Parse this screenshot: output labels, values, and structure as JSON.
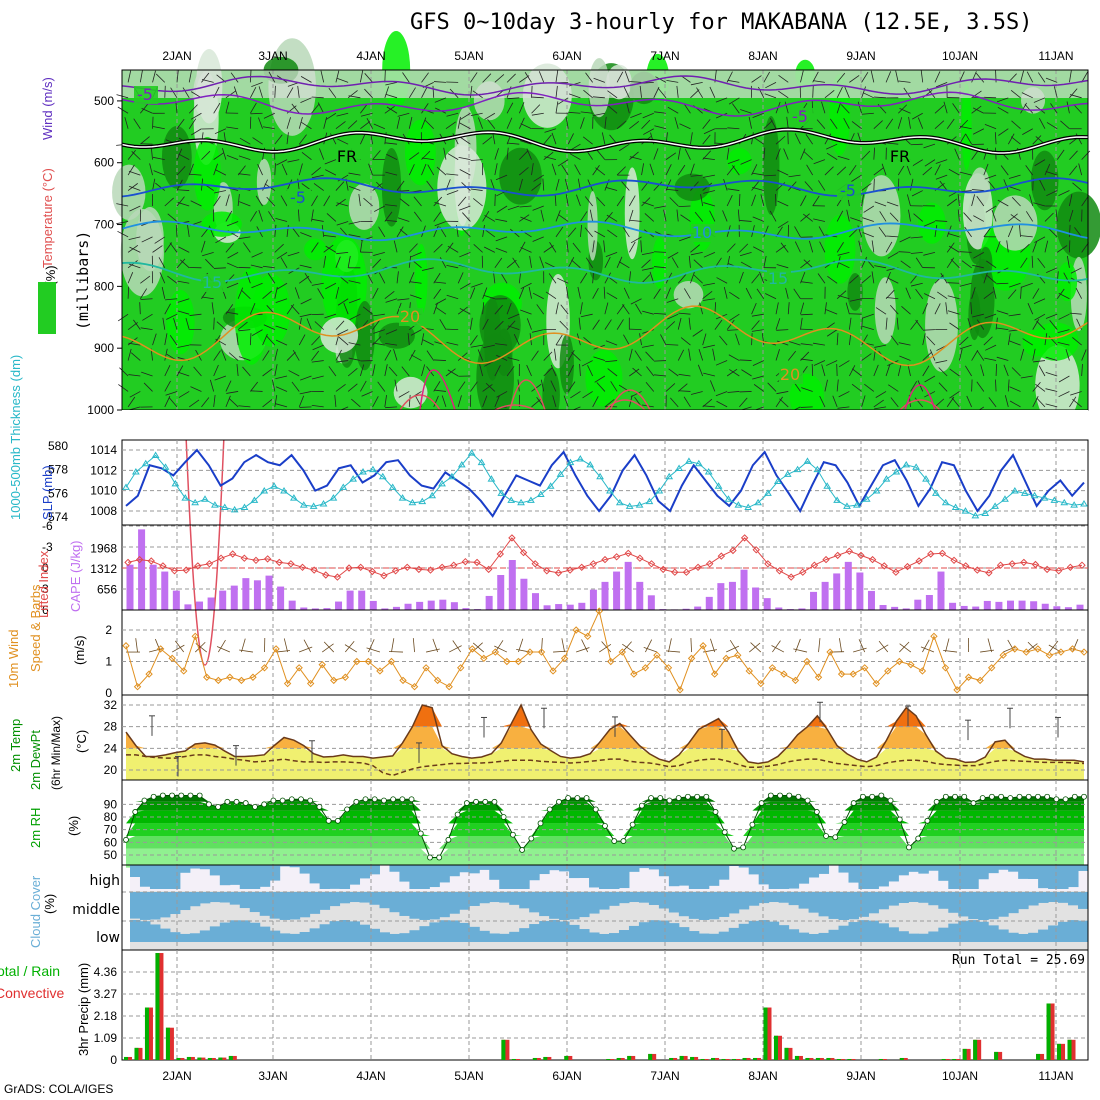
{
  "title": "GFS 0~10day 3-hourly for MAKABANA (12.5E, 3.5S)",
  "footer": "GrADS: COLA/IGES",
  "colors": {
    "rh_dark": "#118a11",
    "rh_mid": "#22cc22",
    "rh_light": "#00ee00",
    "rh_pale": "#b8d8b8",
    "temp_line": "#1a3ec8",
    "thickness": "#28b8c8",
    "lifted": "#e04848",
    "cape": "#c070f0",
    "wind10": "#e09020",
    "temp_fill_hi": "#f07010",
    "temp_fill_mid": "#f8b040",
    "temp_fill_lo": "#f0f070",
    "rh2m": "#00c000",
    "cloud": "#6aaed6",
    "cloud_bg": "#e2e2e2",
    "precip_total": "#00b000",
    "precip_conv": "#e03030"
  },
  "chart_data": [
    {
      "type": "heatmap",
      "panel": "upper-air",
      "ylabels_left": [
        "RH (%)",
        "Temperature (°C)",
        "Wind (m/s)"
      ],
      "ylabel_right": "(millibars)",
      "y_ticks": [
        "500",
        "600",
        "700",
        "800",
        "900",
        "1000"
      ],
      "date_ticks": [
        "2JAN",
        "3JAN",
        "4JAN",
        "5JAN",
        "6JAN",
        "7JAN",
        "8JAN",
        "9JAN",
        "10JAN",
        "11JAN"
      ],
      "contour_labels": [
        {
          "text": "-5",
          "color": "#8020c0"
        },
        {
          "text": "-5",
          "color": "#8020c0"
        },
        {
          "text": "FR",
          "color": "#000000"
        },
        {
          "text": "FR",
          "color": "#000000"
        },
        {
          "text": "-5",
          "color": "#1a50d0"
        },
        {
          "text": "-5",
          "color": "#1a50d0"
        },
        {
          "text": "10",
          "color": "#2090e0"
        },
        {
          "text": "15",
          "color": "#20b8a0"
        },
        {
          "text": "15",
          "color": "#20b8a0"
        },
        {
          "text": "20",
          "color": "#e09020"
        },
        {
          "text": "20",
          "color": "#e09020"
        }
      ]
    },
    {
      "type": "line",
      "panel": "thickness-slp",
      "ylabel_left": "1000-500mb Thickness (dm)",
      "ylabel_right": "SLP (mb)",
      "ticks_left": [
        "580",
        "578",
        "576",
        "574"
      ],
      "ticks_right": [
        "1014",
        "1012",
        "1010",
        "1008"
      ],
      "slp": [
        1008.5,
        1009.5,
        1012.5,
        1012.2,
        1011.5,
        1012.8,
        1014,
        1012.5,
        1010.5,
        1011.2,
        1012.8,
        1013.5,
        1012.8,
        1012.5,
        1013.5,
        1012,
        1010,
        1010.5,
        1012.2,
        1012.5,
        1010.8,
        1011.5,
        1012.8,
        1013,
        1011.5,
        1010.5,
        1010.2,
        1011.8,
        1011,
        1010.2,
        1009,
        1007.5,
        1009.5,
        1011.5,
        1011,
        1010.5,
        1012.5,
        1013.8,
        1011.5,
        1009.5,
        1008,
        1009.5,
        1012,
        1013.5,
        1011.5,
        1009,
        1008,
        1010.5,
        1012.5,
        1011,
        1009.5,
        1008.5,
        1010,
        1012.5,
        1013.8,
        1011.5,
        1009.8,
        1008,
        1010.5,
        1012.8,
        1012.5,
        1010.8,
        1008.5,
        1010.5,
        1012.5,
        1013,
        1011,
        1008.5,
        1010.2,
        1012.8,
        1012.5,
        1010,
        1008,
        1009.5,
        1012,
        1013.5,
        1011,
        1008.5,
        1010,
        1011,
        1009.5,
        1010.8
      ],
      "thickness": [
        576.5,
        577.8,
        578.5,
        579.2,
        578.2,
        576.8,
        575.6,
        575.2,
        575.5,
        575.0,
        574.8,
        574.6,
        574.8,
        575.4,
        576.2,
        576.6,
        576.2,
        575.6,
        575.0,
        574.9,
        575.1,
        575.6,
        576.5,
        577.2,
        577.8,
        578.0,
        577.4,
        576.5,
        575.6,
        575.2,
        575.3,
        575.8,
        576.8,
        577.4,
        578.4,
        579.4,
        578.6,
        577.2,
        576.0,
        575.4,
        575.2,
        575.4,
        575.9,
        576.6,
        577.6,
        578.6,
        578.9,
        578.4,
        577.4,
        576.2,
        575.2,
        574.9,
        575.0,
        575.3,
        576.2,
        577.4,
        578.1,
        578.7,
        578.5,
        577.8,
        576.6,
        575.5,
        575.0,
        574.8,
        575.2,
        576.0,
        577.0,
        577.6,
        578.0,
        578.7,
        578.0,
        576.6,
        575.4,
        574.9,
        575.0,
        575.5,
        576.2,
        577.2,
        577.8,
        578.4,
        578.2,
        577.2,
        576.0,
        575.2,
        574.8,
        574.5,
        574.1,
        574.3,
        574.9,
        575.5,
        576.2,
        576.0,
        575.8,
        575.6,
        575.4,
        575.2,
        575.0,
        575.1
      ]
    },
    {
      "type": "bar",
      "panel": "lifted-cape",
      "ylabel_left": "Lifted Index",
      "ylabel_right": "CAPE (J/kg)",
      "ticks_left": [
        "-6",
        "-3",
        "0",
        "3",
        "6"
      ],
      "ticks_right": [
        "1968",
        "1312",
        "656"
      ],
      "cape": [
        1450,
        2580,
        1450,
        1230,
        620,
        180,
        270,
        400,
        620,
        780,
        1020,
        950,
        1100,
        750,
        300,
        80,
        50,
        60,
        270,
        620,
        620,
        290,
        50,
        100,
        200,
        260,
        300,
        330,
        250,
        60,
        30,
        450,
        1120,
        1600,
        1000,
        540,
        150,
        190,
        170,
        230,
        650,
        900,
        1230,
        1540,
        900,
        470,
        30,
        20,
        40,
        110,
        420,
        860,
        900,
        1290,
        720,
        380,
        80,
        30,
        50,
        580,
        900,
        1170,
        1540,
        1200,
        610,
        160,
        100,
        50,
        330,
        480,
        1230,
        230,
        130,
        110,
        290,
        260,
        300,
        300,
        280,
        200,
        120,
        90,
        170
      ],
      "lifted": [
        -0.8,
        -1.2,
        -1.0,
        -0.3,
        0.4,
        0.3,
        -0.3,
        -0.6,
        -1.4,
        -2.0,
        -1.4,
        -1.1,
        -1.3,
        -0.8,
        -0.6,
        -0.1,
        0.3,
        1.0,
        1.3,
        0.0,
        -0.1,
        0.5,
        1.1,
        0.4,
        -0.1,
        0.2,
        0.3,
        -0.1,
        -0.4,
        -0.9,
        -0.8,
        0.2,
        -2.0,
        -4.3,
        -2.2,
        -0.6,
        0.4,
        0.7,
        0.3,
        -0.1,
        -0.6,
        -1.2,
        -1.6,
        -2.1,
        -1.4,
        -0.6,
        0.2,
        0.6,
        0.6,
        -0.1,
        -0.6,
        -1.7,
        -2.5,
        -4.3,
        -2.6,
        -0.6,
        0.4,
        1.3,
        0.6,
        -0.4,
        -1.2,
        -1.8,
        -2.4,
        -1.8,
        -1.2,
        -0.3,
        0.6,
        -0.2,
        -1.0,
        -2.0,
        -2.1,
        -1.1,
        -0.3,
        0.3,
        0.7,
        -0.4,
        -0.6,
        -0.8,
        -0.5,
        0.2,
        0.4,
        -0.1,
        -0.4
      ]
    },
    {
      "type": "line",
      "panel": "wind10m",
      "ylabel_left": "10m Wind",
      "ylabel_left2": "Speed & Barbs",
      "ylabel_right": "(m/s)",
      "ticks_left": [
        "2",
        "1",
        "0"
      ],
      "speed": [
        1.5,
        0.2,
        0.6,
        1.4,
        1.1,
        0.7,
        1.8,
        0.5,
        0.4,
        0.5,
        0.4,
        0.5,
        0.8,
        1.4,
        0.3,
        0.8,
        0.3,
        0.9,
        0.4,
        0.5,
        1.0,
        1.0,
        0.7,
        1.0,
        0.4,
        0.2,
        0.8,
        0.4,
        0.2,
        0.8,
        1.4,
        1.1,
        1.3,
        1.0,
        1.0,
        1.3,
        1.3,
        0.7,
        1.1,
        2.0,
        1.8,
        2.6,
        1.0,
        1.3,
        0.6,
        0.8,
        1.2,
        0.8,
        0.1,
        1.1,
        1.5,
        0.6,
        1.1,
        1.2,
        0.7,
        0.3,
        0.8,
        0.6,
        0.4,
        1.0,
        0.5,
        1.3,
        0.6,
        0.6,
        0.8,
        0.3,
        0.7,
        1.0,
        0.9,
        0.7,
        1.8,
        0.8,
        0.1,
        0.5,
        0.4,
        0.8,
        1.2,
        1.4,
        1.3,
        1.4,
        1.2,
        1.3,
        1.4,
        1.3
      ]
    },
    {
      "type": "area",
      "panel": "temp2m",
      "ylabel_left": "2m Temp",
      "ylabel_left2": "2m DewPt",
      "ylabel_left3": "(6hr Min/Max)",
      "ylabel_right": "(°C)",
      "ticks_left": [
        "32",
        "28",
        "24",
        "20"
      ],
      "temp": [
        27,
        24.5,
        22.5,
        22.5,
        22.8,
        23.2,
        23.5,
        24.8,
        25,
        24.6,
        23.5,
        22.5,
        22.5,
        22.6,
        22.8,
        24.5,
        26,
        25.5,
        24.5,
        23,
        22.4,
        22.5,
        22.8,
        22.5,
        22.5,
        22.2,
        22.4,
        22.6,
        25,
        28,
        32,
        31.5,
        24.5,
        23,
        22.5,
        22.2,
        22.4,
        23,
        25,
        28.5,
        32,
        27.5,
        24.8,
        23.6,
        22.5,
        22.2,
        22.4,
        23,
        25.2,
        27.5,
        28.6,
        26.5,
        24.5,
        23,
        22,
        21.5,
        22.8,
        25,
        27.5,
        28.5,
        29.5,
        27,
        23.5,
        21.5,
        21.2,
        21.5,
        22.5,
        24.3,
        26.5,
        28,
        30,
        27.5,
        24.5,
        23,
        22,
        21.5,
        22.4,
        25.5,
        29,
        31.5,
        30,
        26.5,
        23.5,
        22.2,
        22,
        21.4,
        21.5,
        22.4,
        25.2,
        25.5,
        23.5,
        22.5,
        22,
        22,
        21.8,
        21.8,
        21.8,
        21.5
      ],
      "dewpoint": [
        22.8,
        22.8,
        22.5,
        22.3,
        22.2,
        22.2,
        22.5,
        22.8,
        22.8,
        22.5,
        22.3,
        22.0,
        21.8,
        21.5,
        21.6,
        21.8,
        22.0,
        21.7,
        21.5,
        21.5,
        21.4,
        21.5,
        21.5,
        21.4,
        21.3,
        20.8,
        19.5,
        19.0,
        19.6,
        20.2,
        20.6,
        20.8,
        21.0,
        21.2,
        21.2,
        21.3,
        21.3,
        21.4,
        21.6,
        21.8,
        21.8,
        21.8,
        21.6,
        21.5,
        21.4,
        21.3,
        21.4,
        21.6,
        21.8,
        22.0,
        22.0,
        21.6,
        21.4,
        21.3,
        21.0,
        20.6,
        20.8,
        21.4,
        21.8,
        22.0,
        22.0,
        21.6,
        21.0,
        20.5,
        20.5,
        20.7,
        21.0,
        21.5,
        21.8,
        22.0,
        22.0,
        21.6,
        21.2,
        21.0,
        20.8,
        20.6,
        20.8,
        21.3,
        21.6,
        21.8,
        21.8,
        21.6,
        21.2,
        21.0,
        20.9,
        20.8,
        20.8,
        21.2,
        21.6,
        21.8,
        21.7,
        21.6,
        21.5,
        21.4,
        21.4,
        21.4,
        21.3,
        21.2
      ],
      "max6hr": [
        30,
        22.5,
        24.5,
        25.4,
        25,
        29.7,
        31.4,
        29.8,
        27.5,
        32.5,
        31.8,
        29.2,
        31.4,
        29.7
      ]
    },
    {
      "type": "area",
      "panel": "rh2m",
      "ylabel_left": "2m RH",
      "ylabel_right": "(%)",
      "ticks_left": [
        "90",
        "80",
        "70",
        "60",
        "50"
      ],
      "rh": [
        62,
        84,
        93,
        96,
        97,
        97,
        97,
        97,
        97,
        90,
        88,
        92,
        92,
        91,
        88,
        90,
        93,
        93,
        94,
        94,
        93,
        88,
        77,
        77,
        86,
        92,
        94,
        94,
        93,
        94,
        94,
        94,
        67,
        48,
        48,
        62,
        82,
        91,
        92,
        92,
        92,
        80,
        66,
        54,
        63,
        75,
        86,
        92,
        95,
        95,
        95,
        86,
        73,
        61,
        61,
        74,
        89,
        95,
        95,
        93,
        95,
        96,
        96,
        96,
        84,
        68,
        55,
        56,
        74,
        91,
        97,
        97,
        97,
        96,
        93,
        84,
        65,
        64,
        76,
        91,
        96,
        96,
        97,
        93,
        78,
        56,
        63,
        77,
        92,
        96,
        96,
        96,
        91,
        95,
        96,
        96,
        95,
        96,
        96,
        96,
        96,
        94,
        94,
        96,
        96
      ]
    },
    {
      "type": "area",
      "panel": "cloud",
      "ylabel_left": "Cloud Cover",
      "ylabel_right": "(%)",
      "ticks_left": [
        "high",
        "middle",
        "low"
      ]
    },
    {
      "type": "bar",
      "panel": "precip",
      "ylabel_left": "Total / Rain",
      "ylabel_left2": "Convective",
      "ylabel_right": "3hr Precip (mm)",
      "ticks_left": [
        "4.36",
        "3.27",
        "2.18",
        "1.09",
        "0"
      ],
      "run_total": "Run Total = 25.69",
      "date_ticks": [
        "2JAN",
        "3JAN",
        "4JAN",
        "5JAN",
        "6JAN",
        "7JAN",
        "8JAN",
        "9JAN",
        "10JAN",
        "11JAN"
      ],
      "precip": [
        0.15,
        0.6,
        2.6,
        5.3,
        1.6,
        0.1,
        0.15,
        0.12,
        0.1,
        0.12,
        0.2,
        0,
        0,
        0,
        0,
        0,
        0,
        0,
        0,
        0,
        0,
        0,
        0,
        0,
        0,
        0,
        0,
        0,
        0,
        0,
        0,
        0,
        0,
        0,
        0,
        0,
        1.0,
        0.05,
        0,
        0.1,
        0.15,
        0,
        0.2,
        0,
        0,
        0,
        0.05,
        0.1,
        0.2,
        0,
        0.3,
        0,
        0.1,
        0.2,
        0.15,
        0.05,
        0.1,
        0.05,
        0.05,
        0.1,
        0.1,
        2.6,
        1.2,
        0.6,
        0.2,
        0.1,
        0.1,
        0.1,
        0.05,
        0.05,
        0,
        0,
        0.05,
        0,
        0.1,
        0,
        0,
        0,
        0.05,
        0.05,
        0.55,
        1.0,
        0,
        0.4,
        0,
        0,
        0,
        0.3,
        2.8,
        0.8,
        1.0,
        0
      ]
    }
  ]
}
